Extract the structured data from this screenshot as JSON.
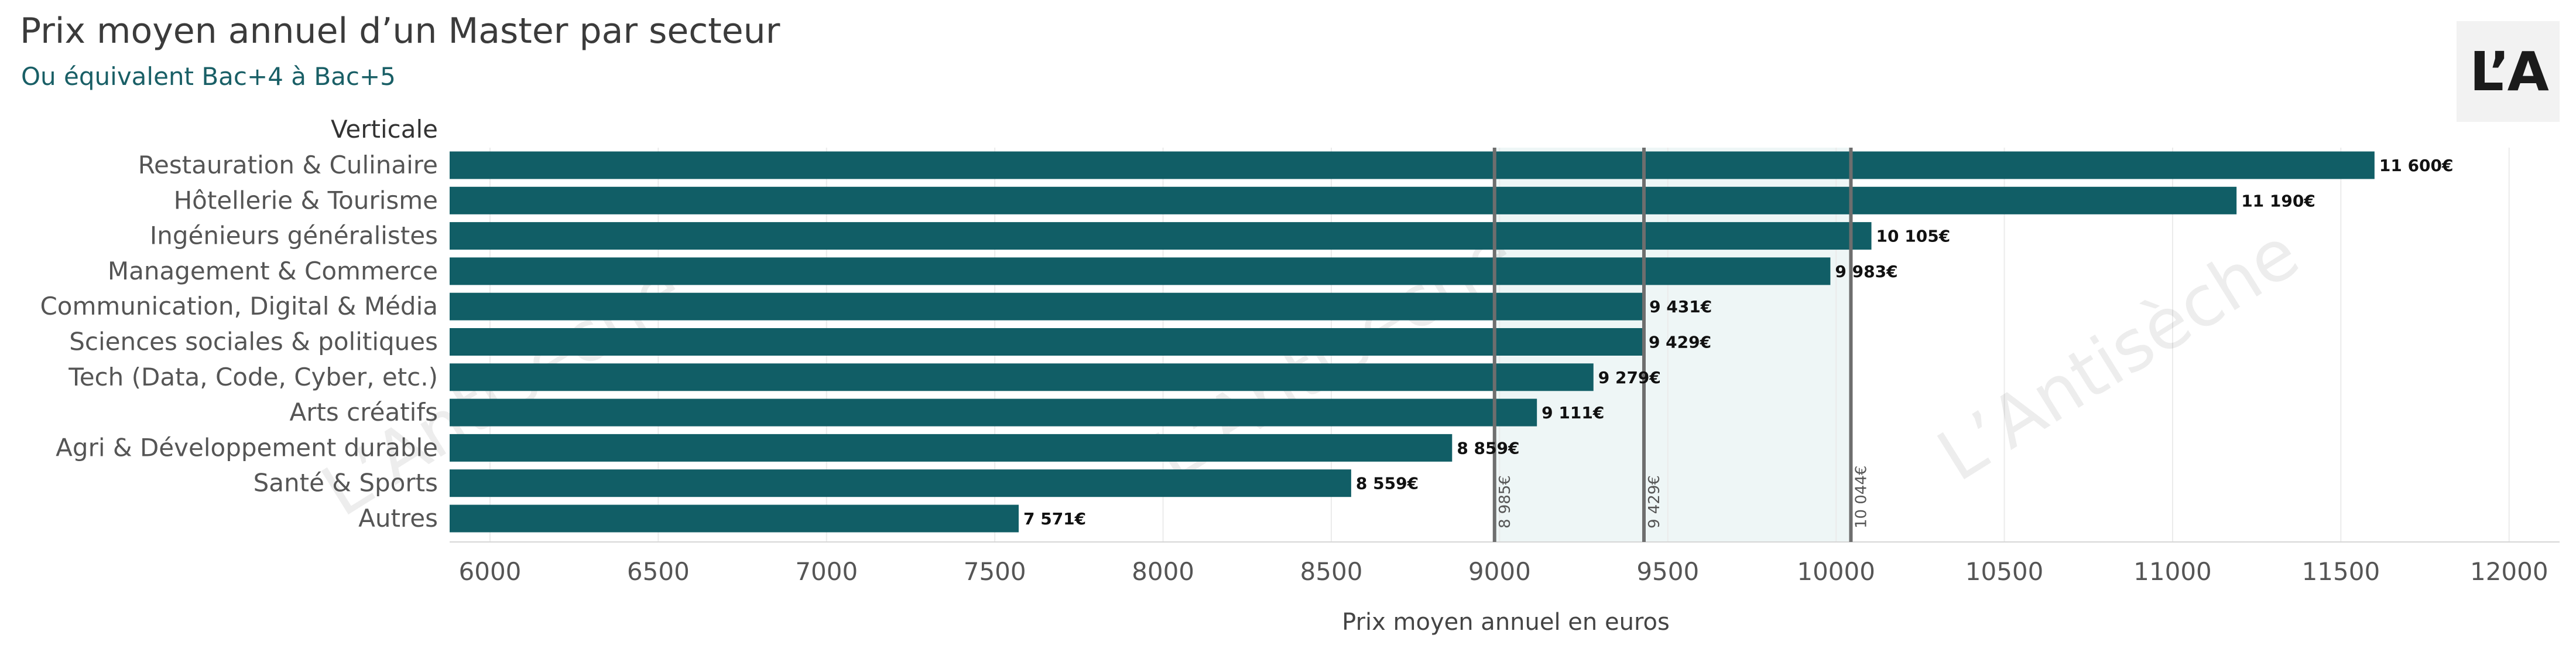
{
  "header": {
    "title": "Prix moyen annuel d’un Master par secteur",
    "subtitle": "Ou équivalent Bac+4 à Bac+5"
  },
  "logo": {
    "text": "L’A"
  },
  "watermark": {
    "text": "L’Antisèche",
    "count": 3
  },
  "chart_data": {
    "type": "bar",
    "orientation": "horizontal",
    "title": "Prix moyen annuel d’un Master par secteur",
    "subtitle": "Ou équivalent Bac+4 à Bac+5",
    "ylabel": "Verticale",
    "xlabel": "Prix moyen annuel en euros",
    "xlim": [
      5880,
      12150
    ],
    "xticks": [
      6000,
      6500,
      7000,
      7500,
      8000,
      8500,
      9000,
      9500,
      10000,
      10500,
      11000,
      11500,
      12000
    ],
    "grid": true,
    "bar_color": "#115e66",
    "band_color": "#eef6f6",
    "ref_line_color": "#6e6e6e",
    "categories": [
      "Restauration & Culinaire",
      "Hôtellerie & Tourisme",
      "Ingénieurs généralistes",
      "Management & Commerce",
      "Communication, Digital & Média",
      "Sciences sociales & politiques",
      "Tech (Data, Code, Cyber, etc.)",
      "Arts créatifs",
      "Agri & Développement durable",
      "Santé & Sports",
      "Autres"
    ],
    "values": [
      11600,
      11190,
      10105,
      9983,
      9431,
      9429,
      9279,
      9111,
      8859,
      8559,
      7571
    ],
    "value_labels": [
      "11 600€",
      "11 190€",
      "10 105€",
      "9 983€",
      "9 431€",
      "9 429€",
      "9 279€",
      "9 111€",
      "8 859€",
      "8 559€",
      "7 571€"
    ],
    "reference_lines": [
      {
        "value": 8985,
        "label": "8 985€"
      },
      {
        "value": 9429,
        "label": "9 429€"
      },
      {
        "value": 10044,
        "label": "10 044€"
      }
    ],
    "reference_band": [
      8985,
      10044
    ]
  }
}
